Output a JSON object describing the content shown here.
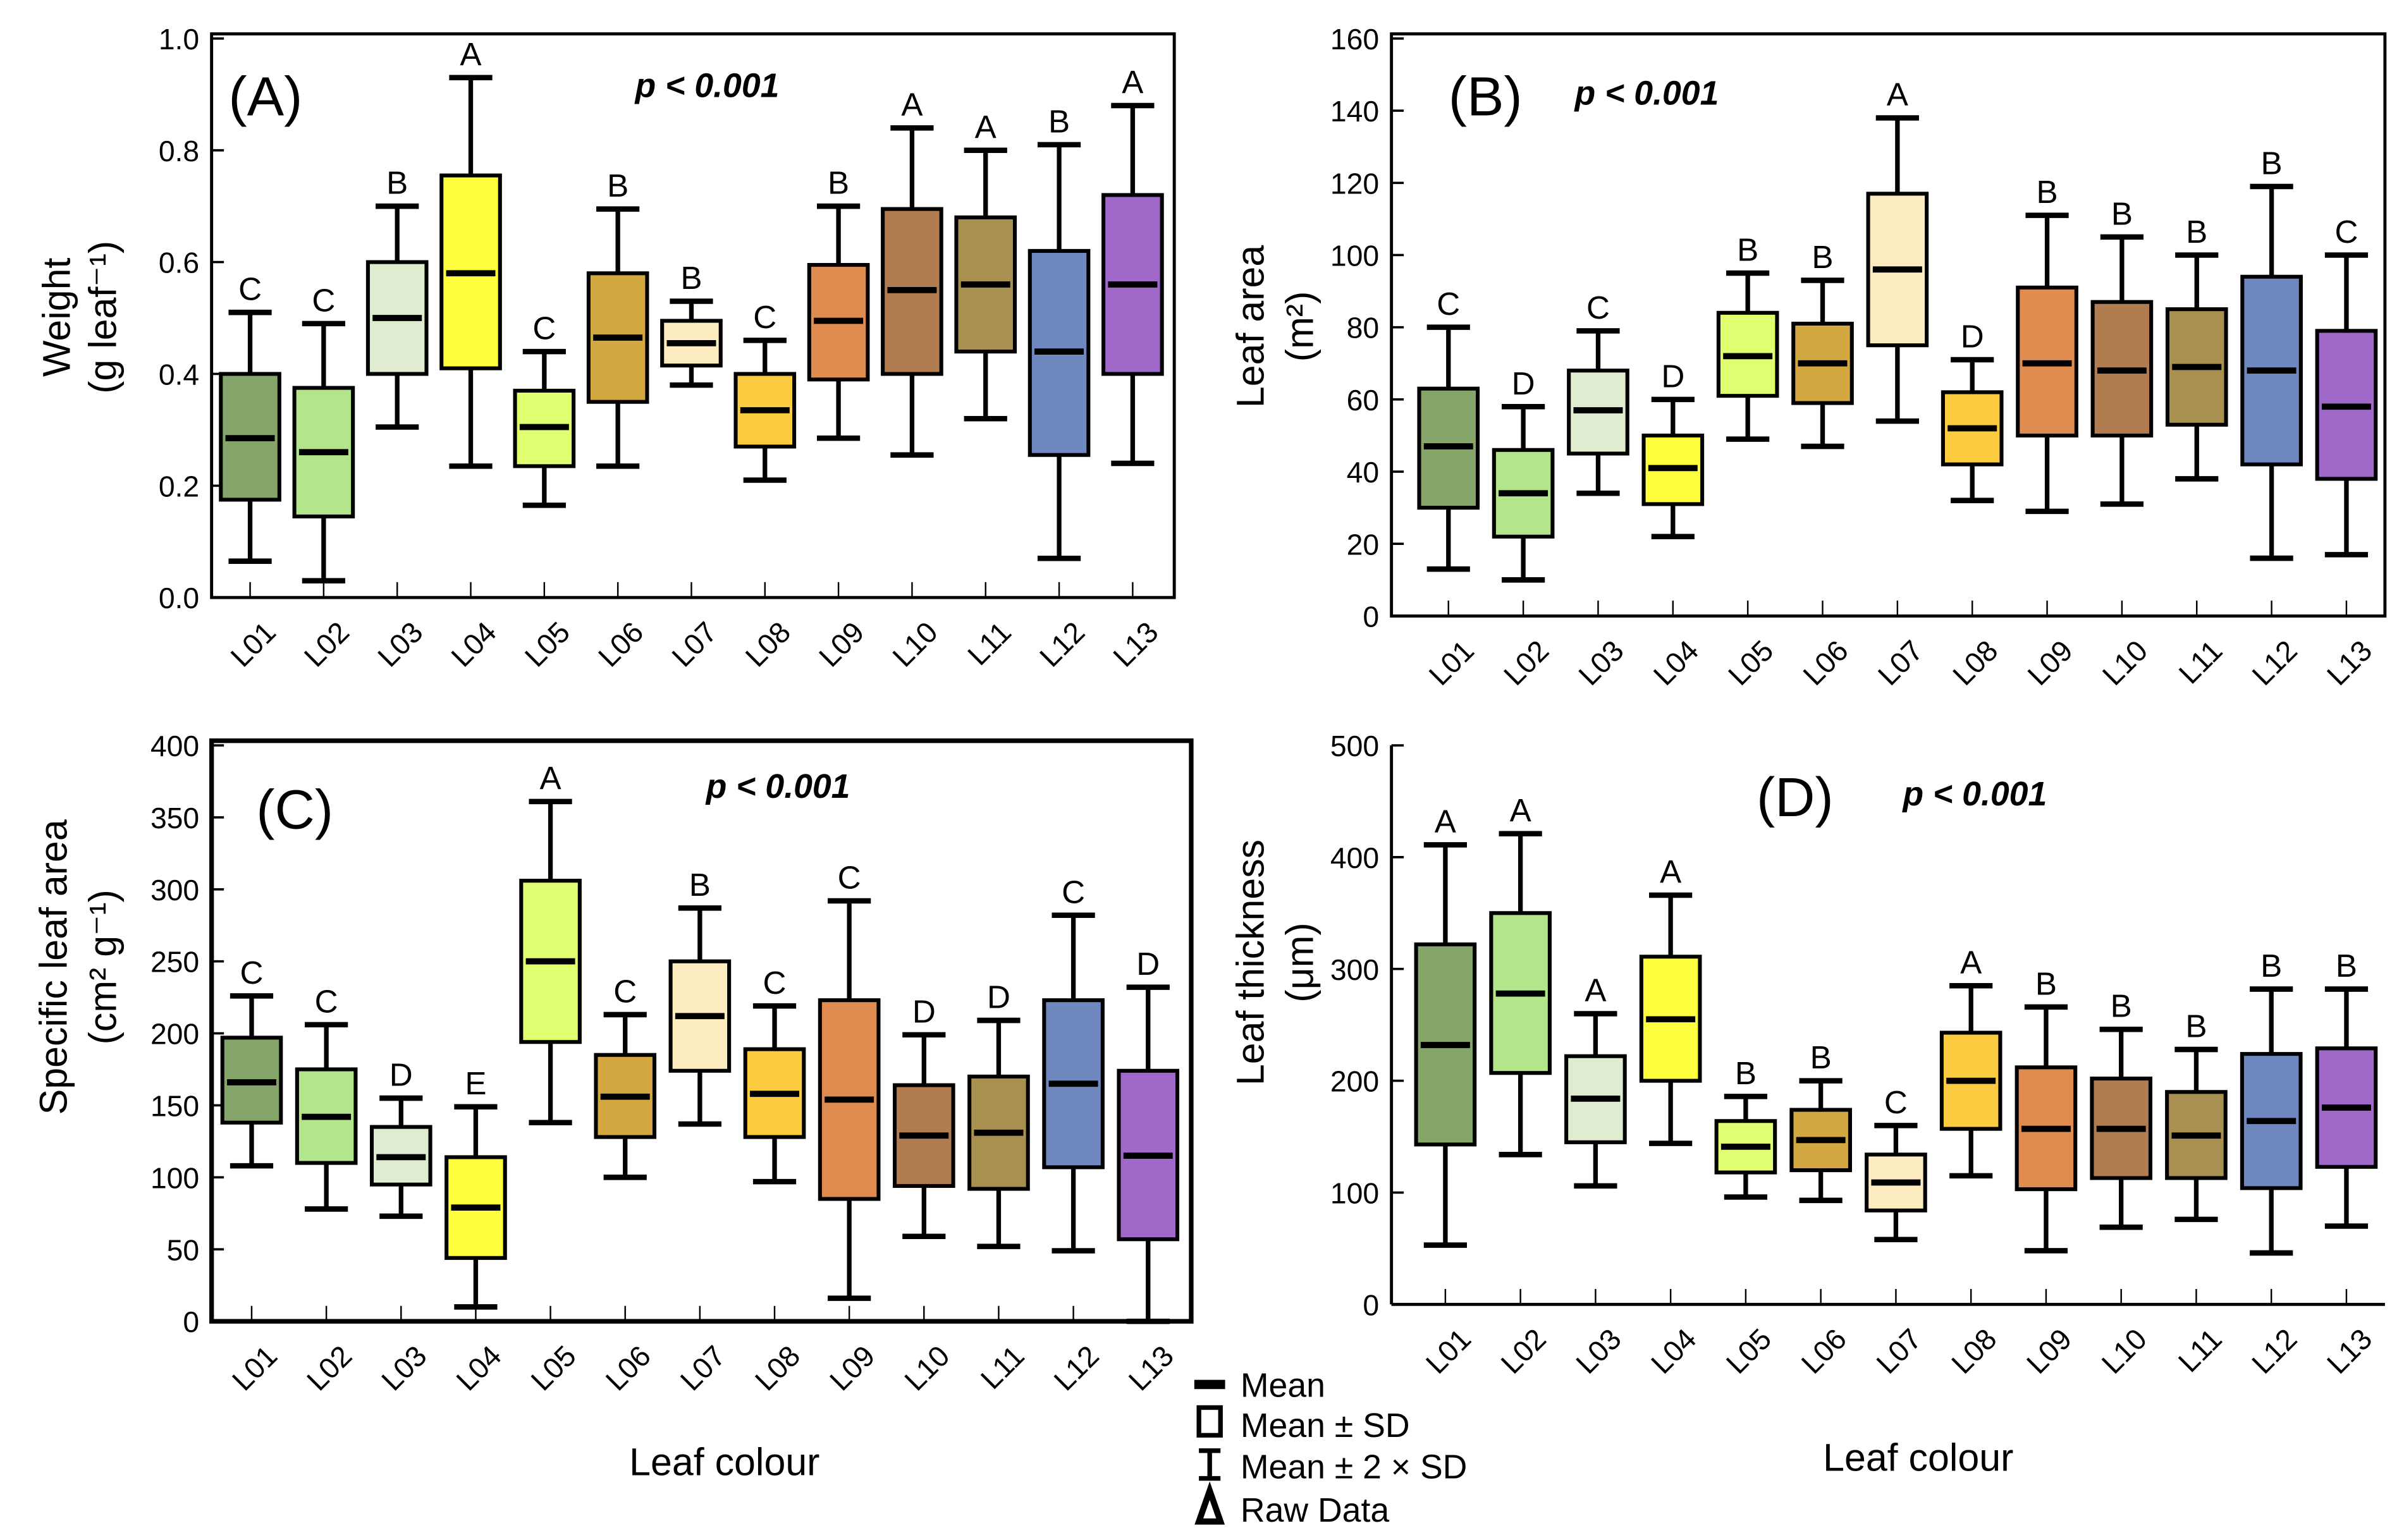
{
  "chart_data": [
    {
      "type": "box",
      "panel": "(A)",
      "pvalue": "p < 0.001",
      "ylabel": "Weight",
      "yunit": "(g leaf⁻¹)",
      "xlabel": "",
      "ylim": [
        0,
        1.0
      ],
      "yticks": [
        "0.0",
        "0.2",
        "0.4",
        "0.6",
        "0.8",
        "1.0"
      ],
      "ystep": 0.2,
      "categories": [
        "L01",
        "L02",
        "L03",
        "L04",
        "L05",
        "L06",
        "L07",
        "L08",
        "L09",
        "L10",
        "L11",
        "L12",
        "L13"
      ],
      "mean": [
        0.285,
        0.26,
        0.5,
        0.58,
        0.305,
        0.465,
        0.455,
        0.335,
        0.495,
        0.55,
        0.56,
        0.44,
        0.56
      ],
      "sd_low": [
        0.175,
        0.145,
        0.4,
        0.41,
        0.235,
        0.35,
        0.415,
        0.27,
        0.39,
        0.4,
        0.44,
        0.255,
        0.4
      ],
      "sd_high": [
        0.4,
        0.375,
        0.6,
        0.755,
        0.37,
        0.58,
        0.495,
        0.4,
        0.595,
        0.695,
        0.68,
        0.62,
        0.72
      ],
      "sd2_low": [
        0.065,
        0.03,
        0.305,
        0.235,
        0.165,
        0.235,
        0.38,
        0.21,
        0.285,
        0.255,
        0.32,
        0.07,
        0.24
      ],
      "sd2_high": [
        0.51,
        0.49,
        0.7,
        0.93,
        0.44,
        0.695,
        0.53,
        0.46,
        0.7,
        0.84,
        0.8,
        0.81,
        0.88
      ],
      "letters": [
        "C",
        "C",
        "B",
        "A",
        "C",
        "B",
        "B",
        "C",
        "B",
        "A",
        "A",
        "B",
        "A"
      ]
    },
    {
      "type": "box",
      "panel": "(B)",
      "pvalue": "p < 0.001",
      "ylabel": "Leaf area",
      "yunit": "(m²)",
      "xlabel": "Leaf colour",
      "ylim": [
        0,
        160
      ],
      "yticks": [
        "0",
        "20",
        "40",
        "60",
        "80",
        "100",
        "120",
        "140",
        "160"
      ],
      "ystep": 20,
      "categories": [
        "L01",
        "L02",
        "L03",
        "L04",
        "L05",
        "L06",
        "L07",
        "L08",
        "L09",
        "L10",
        "L11",
        "L12",
        "L13"
      ],
      "mean": [
        47,
        34,
        57,
        41,
        72,
        70,
        96,
        52,
        70,
        68,
        69,
        68,
        58
      ],
      "sd_low": [
        30,
        22,
        45,
        31,
        61,
        59,
        75,
        42,
        50,
        50,
        53,
        42,
        38
      ],
      "sd_high": [
        63,
        46,
        68,
        50,
        84,
        81,
        117,
        62,
        91,
        87,
        85,
        94,
        79
      ],
      "sd2_low": [
        13,
        10,
        34,
        22,
        49,
        47,
        54,
        32,
        29,
        31,
        38,
        16,
        17
      ],
      "sd2_high": [
        80,
        58,
        79,
        60,
        95,
        93,
        138,
        71,
        111,
        105,
        100,
        119,
        100
      ],
      "letters": [
        "C",
        "D",
        "C",
        "D",
        "B",
        "B",
        "A",
        "D",
        "B",
        "B",
        "B",
        "B",
        "C"
      ]
    },
    {
      "type": "box",
      "panel": "(C)",
      "pvalue": "p < 0.001",
      "ylabel": "Specific leaf area",
      "yunit": "(cm² g⁻¹)",
      "xlabel": "Leaf colour",
      "ylim": [
        0,
        400
      ],
      "yticks": [
        "0",
        "50",
        "100",
        "150",
        "200",
        "250",
        "300",
        "350",
        "400"
      ],
      "ystep": 50,
      "categories": [
        "L01",
        "L02",
        "L03",
        "L04",
        "L05",
        "L06",
        "L07",
        "L08",
        "L09",
        "L10",
        "L11",
        "L12",
        "L13"
      ],
      "mean": [
        166,
        142,
        114,
        79,
        250,
        156,
        212,
        158,
        154,
        129,
        131,
        165,
        115
      ],
      "sd_low": [
        138,
        110,
        95,
        44,
        194,
        128,
        174,
        128,
        85,
        94,
        92,
        107,
        57
      ],
      "sd_high": [
        197,
        175,
        135,
        114,
        306,
        185,
        250,
        189,
        223,
        164,
        170,
        223,
        174
      ],
      "sd2_low": [
        108,
        78,
        73,
        10,
        138,
        100,
        137,
        97,
        16,
        59,
        52,
        49,
        0
      ],
      "sd2_high": [
        226,
        206,
        155,
        149,
        361,
        213,
        287,
        219,
        292,
        199,
        209,
        282,
        232
      ],
      "letters": [
        "C",
        "C",
        "D",
        "E",
        "A",
        "C",
        "B",
        "C",
        "C",
        "D",
        "D",
        "C",
        "D"
      ]
    },
    {
      "type": "box",
      "panel": "(D)",
      "pvalue": "p < 0.001",
      "ylabel": "Leaf thickness",
      "yunit": "(μm)",
      "xlabel": "",
      "ylim": [
        0,
        500
      ],
      "yticks": [
        "0",
        "100",
        "200",
        "300",
        "400",
        "500"
      ],
      "ystep": 100,
      "categories": [
        "L01",
        "L02",
        "L03",
        "L04",
        "L05",
        "L06",
        "L07",
        "L08",
        "L09",
        "L10",
        "L11",
        "L12",
        "L13"
      ],
      "mean": [
        232,
        278,
        184,
        255,
        141,
        147,
        109,
        200,
        157,
        157,
        151,
        164,
        176
      ],
      "sd_low": [
        143,
        207,
        145,
        200,
        118,
        120,
        84,
        157,
        103,
        113,
        113,
        104,
        123
      ],
      "sd_high": [
        322,
        350,
        222,
        311,
        164,
        174,
        134,
        243,
        212,
        202,
        190,
        224,
        229
      ],
      "sd2_low": [
        53,
        134,
        106,
        144,
        96,
        93,
        58,
        115,
        48,
        69,
        76,
        46,
        70
      ],
      "sd2_high": [
        411,
        421,
        260,
        366,
        186,
        200,
        160,
        285,
        266,
        246,
        228,
        282,
        282
      ],
      "letters": [
        "A",
        "A",
        "A",
        "A",
        "B",
        "B",
        "C",
        "A",
        "B",
        "B",
        "B",
        "B",
        "B"
      ]
    }
  ],
  "colors": [
    "#86a56a",
    "#b3e68a",
    "#e0ecd0",
    "#ffff40",
    "#e0ff70",
    "#d4a840",
    "#fdecc0",
    "#fccc40",
    "#e08c50",
    "#b07c50",
    "#a89050",
    "#7088c0",
    "#a068c8"
  ],
  "legend": {
    "mean": "Mean",
    "sd": "Mean ± SD",
    "sd2": "Mean ± 2 × SD",
    "raw": "Raw Data"
  }
}
